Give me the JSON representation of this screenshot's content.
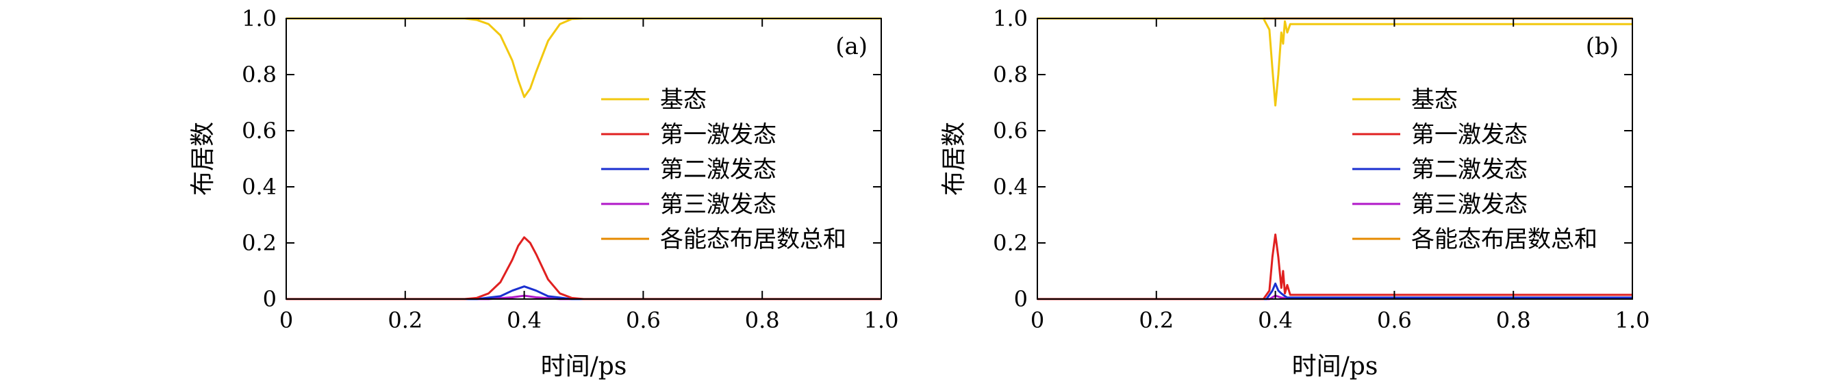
{
  "chart_data": [
    {
      "type": "line",
      "panel_label": "(a)",
      "xlabel": "时间/ps",
      "ylabel": "布居数",
      "xlim": [
        0,
        1.0
      ],
      "ylim": [
        0,
        1.0
      ],
      "xticks": [
        "0",
        "0.2",
        "0.4",
        "0.6",
        "0.8",
        "1.0"
      ],
      "yticks": [
        "0",
        "0.2",
        "0.4",
        "0.6",
        "0.8",
        "1.0"
      ],
      "grid": false,
      "legend_position": "center-right",
      "series": [
        {
          "name": "基态",
          "color": "#f2c80f",
          "x": [
            0,
            0.3,
            0.32,
            0.34,
            0.36,
            0.38,
            0.39,
            0.4,
            0.41,
            0.42,
            0.44,
            0.46,
            0.48,
            0.5,
            1.0
          ],
          "y": [
            1.0,
            1.0,
            0.995,
            0.98,
            0.94,
            0.85,
            0.78,
            0.72,
            0.75,
            0.81,
            0.92,
            0.98,
            0.998,
            1.0,
            1.0
          ]
        },
        {
          "name": "第一激发态",
          "color": "#e02020",
          "x": [
            0,
            0.3,
            0.32,
            0.34,
            0.36,
            0.38,
            0.39,
            0.4,
            0.41,
            0.42,
            0.44,
            0.46,
            0.48,
            0.5,
            1.0
          ],
          "y": [
            0,
            0,
            0.004,
            0.02,
            0.06,
            0.14,
            0.19,
            0.22,
            0.2,
            0.16,
            0.07,
            0.02,
            0.004,
            0,
            0
          ]
        },
        {
          "name": "第二激发态",
          "color": "#1a2fd0",
          "x": [
            0,
            0.32,
            0.36,
            0.38,
            0.4,
            0.42,
            0.44,
            0.48,
            1.0
          ],
          "y": [
            0,
            0,
            0.01,
            0.03,
            0.045,
            0.03,
            0.01,
            0,
            0
          ]
        },
        {
          "name": "第三激发态",
          "color": "#b018c8",
          "x": [
            0,
            0.34,
            0.38,
            0.4,
            0.42,
            0.46,
            1.0
          ],
          "y": [
            0,
            0,
            0.006,
            0.012,
            0.006,
            0,
            0
          ]
        },
        {
          "name": "各能态布居数总和",
          "color": "#e68a00",
          "x": [
            0,
            1.0
          ],
          "y": [
            1.0,
            1.0
          ]
        }
      ]
    },
    {
      "type": "line",
      "panel_label": "(b)",
      "xlabel": "时间/ps",
      "ylabel": "布居数",
      "xlim": [
        0,
        1.0
      ],
      "ylim": [
        0,
        1.0
      ],
      "xticks": [
        "0",
        "0.2",
        "0.4",
        "0.6",
        "0.8",
        "1.0"
      ],
      "yticks": [
        "0",
        "0.2",
        "0.4",
        "0.6",
        "0.8",
        "1.0"
      ],
      "grid": false,
      "legend_position": "center-right",
      "series": [
        {
          "name": "基态",
          "color": "#f2c80f",
          "x": [
            0,
            0.38,
            0.39,
            0.395,
            0.4,
            0.405,
            0.41,
            0.413,
            0.416,
            0.42,
            0.425,
            1.0
          ],
          "y": [
            1.0,
            1.0,
            0.96,
            0.82,
            0.69,
            0.8,
            0.95,
            0.91,
            0.99,
            0.95,
            0.98,
            0.98
          ]
        },
        {
          "name": "第一激发态",
          "color": "#e02020",
          "x": [
            0,
            0.38,
            0.39,
            0.395,
            0.4,
            0.405,
            0.41,
            0.413,
            0.416,
            0.42,
            0.425,
            1.0
          ],
          "y": [
            0,
            0,
            0.03,
            0.15,
            0.23,
            0.15,
            0.04,
            0.1,
            0.02,
            0.05,
            0.015,
            0.015
          ]
        },
        {
          "name": "第二激发态",
          "color": "#1a2fd0",
          "x": [
            0,
            0.385,
            0.395,
            0.4,
            0.405,
            0.41,
            0.415,
            0.42,
            1.0
          ],
          "y": [
            0,
            0,
            0.03,
            0.055,
            0.03,
            0.02,
            0.012,
            0.005,
            0.005
          ]
        },
        {
          "name": "第三激发态",
          "color": "#b018c8",
          "x": [
            0,
            0.39,
            0.4,
            0.41,
            0.42,
            1.0
          ],
          "y": [
            0,
            0,
            0.012,
            0.005,
            0.002,
            0.002
          ]
        },
        {
          "name": "各能态布居数总和",
          "color": "#e68a00",
          "x": [
            0,
            1.0
          ],
          "y": [
            1.0,
            1.0
          ]
        }
      ]
    }
  ]
}
